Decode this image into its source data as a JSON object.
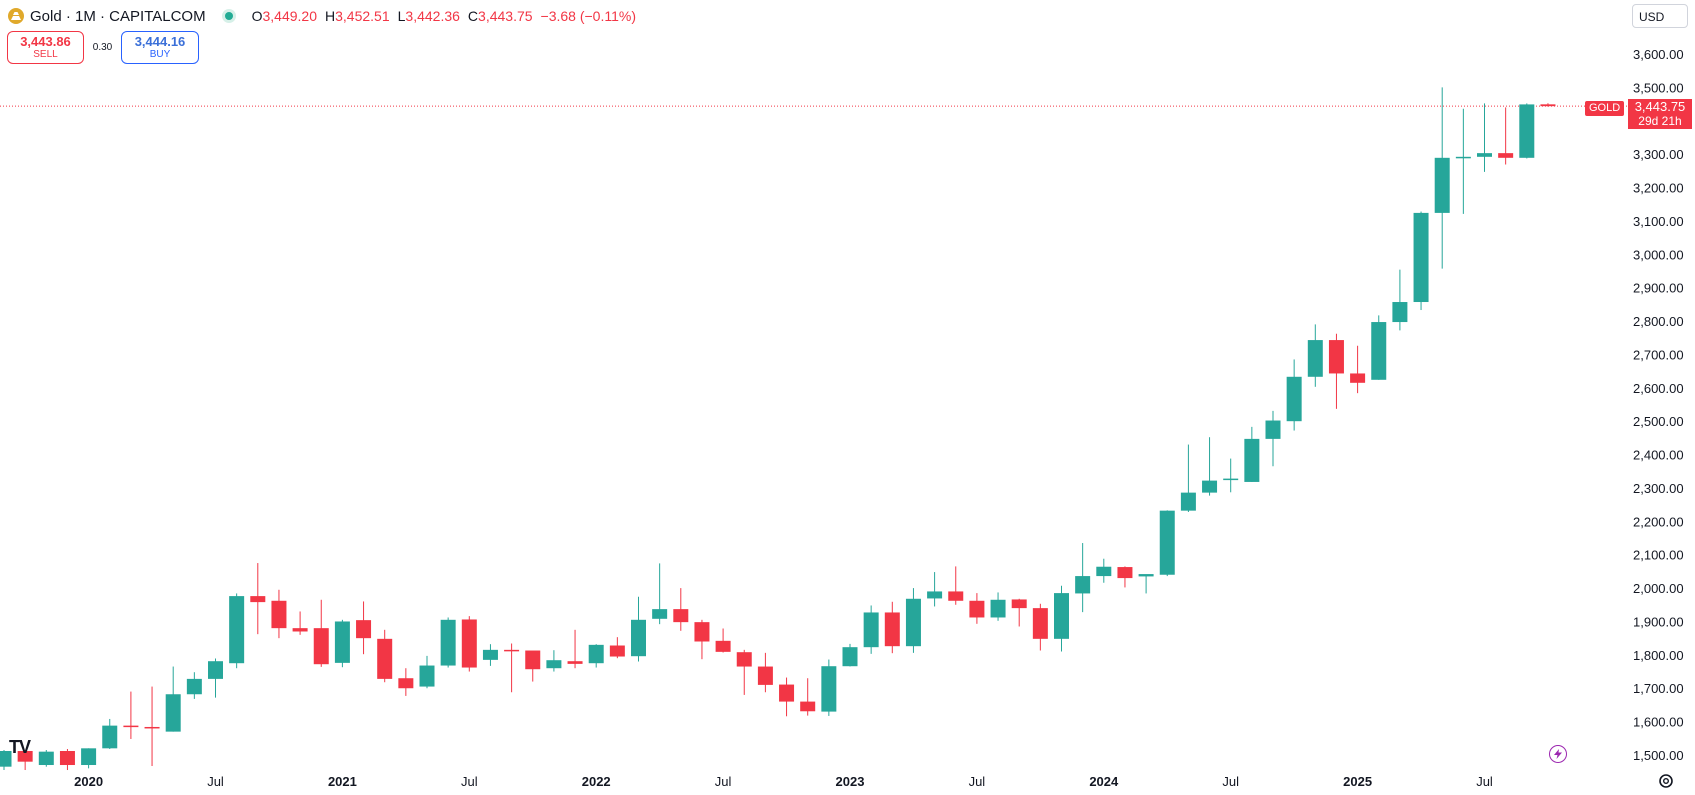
{
  "header": {
    "symbol": "Gold · 1M · CAPITALCOM",
    "ohlc": [
      {
        "k": "O",
        "v": "3,449.20"
      },
      {
        "k": "H",
        "v": "3,452.51"
      },
      {
        "k": "L",
        "v": "3,442.36"
      },
      {
        "k": "C",
        "v": "3,443.75"
      }
    ],
    "change": "−3.68 (−0.11%)",
    "icons": [
      "gold-logo-icon",
      "market-open-dot-icon"
    ]
  },
  "trade": {
    "sell_price": "3,443.86",
    "sell_label": "SELL",
    "spread": "0.30",
    "buy_price": "3,444.16",
    "buy_label": "BUY"
  },
  "currency": "USD",
  "price_badge": {
    "name": "GOLD",
    "price": "3,443.75",
    "countdown": "29d 21h"
  },
  "watermark": "TV",
  "colors": {
    "up": "#26a69a",
    "down": "#f23645",
    "axis_text": "#131722",
    "accent_buy": "#2962ff"
  },
  "chart_data": {
    "type": "candlestick",
    "timeframe": "1M",
    "ylim": [
      1450,
      3620
    ],
    "y_ticks": [
      "1,500.00",
      "1,600.00",
      "1,700.00",
      "1,800.00",
      "1,900.00",
      "2,000.00",
      "2,100.00",
      "2,200.00",
      "2,300.00",
      "2,400.00",
      "2,500.00",
      "2,600.00",
      "2,700.00",
      "2,800.00",
      "2,900.00",
      "3,000.00",
      "3,100.00",
      "3,200.00",
      "3,300.00",
      "3,500.00",
      "3,600.00"
    ],
    "x_ticks": [
      {
        "label": "2020",
        "i": 4,
        "bold": true
      },
      {
        "label": "Jul",
        "i": 10,
        "bold": false
      },
      {
        "label": "2021",
        "i": 16,
        "bold": true
      },
      {
        "label": "Jul",
        "i": 22,
        "bold": false
      },
      {
        "label": "2022",
        "i": 28,
        "bold": true
      },
      {
        "label": "Jul",
        "i": 34,
        "bold": false
      },
      {
        "label": "2023",
        "i": 40,
        "bold": true
      },
      {
        "label": "Jul",
        "i": 46,
        "bold": false
      },
      {
        "label": "2024",
        "i": 52,
        "bold": true
      },
      {
        "label": "Jul",
        "i": 58,
        "bold": false
      },
      {
        "label": "2025",
        "i": 64,
        "bold": true
      },
      {
        "label": "Jul",
        "i": 70,
        "bold": false
      }
    ],
    "last_price": 3443.75,
    "candles": [
      {
        "o": 1465,
        "h": 1515,
        "l": 1455,
        "c": 1512
      },
      {
        "o": 1512,
        "h": 1515,
        "l": 1455,
        "c": 1480
      },
      {
        "o": 1470,
        "h": 1515,
        "l": 1465,
        "c": 1510
      },
      {
        "o": 1512,
        "h": 1518,
        "l": 1455,
        "c": 1470
      },
      {
        "o": 1470,
        "h": 1520,
        "l": 1460,
        "c": 1520
      },
      {
        "o": 1520,
        "h": 1608,
        "l": 1518,
        "c": 1588
      },
      {
        "o": 1588,
        "h": 1690,
        "l": 1548,
        "c": 1584
      },
      {
        "o": 1584,
        "h": 1705,
        "l": 1467,
        "c": 1580
      },
      {
        "o": 1570,
        "h": 1765,
        "l": 1570,
        "c": 1682
      },
      {
        "o": 1682,
        "h": 1748,
        "l": 1668,
        "c": 1728
      },
      {
        "o": 1728,
        "h": 1789,
        "l": 1672,
        "c": 1781
      },
      {
        "o": 1775,
        "h": 1984,
        "l": 1760,
        "c": 1976
      },
      {
        "o": 1976,
        "h": 2075,
        "l": 1862,
        "c": 1958
      },
      {
        "o": 1962,
        "h": 1995,
        "l": 1850,
        "c": 1880
      },
      {
        "o": 1880,
        "h": 1930,
        "l": 1860,
        "c": 1870
      },
      {
        "o": 1880,
        "h": 1965,
        "l": 1764,
        "c": 1772
      },
      {
        "o": 1776,
        "h": 1905,
        "l": 1763,
        "c": 1900
      },
      {
        "o": 1904,
        "h": 1960,
        "l": 1802,
        "c": 1850
      },
      {
        "o": 1848,
        "h": 1875,
        "l": 1718,
        "c": 1728
      },
      {
        "o": 1730,
        "h": 1760,
        "l": 1677,
        "c": 1700
      },
      {
        "o": 1705,
        "h": 1797,
        "l": 1700,
        "c": 1768
      },
      {
        "o": 1768,
        "h": 1912,
        "l": 1762,
        "c": 1905
      },
      {
        "o": 1906,
        "h": 1916,
        "l": 1750,
        "c": 1762
      },
      {
        "o": 1785,
        "h": 1832,
        "l": 1767,
        "c": 1815
      },
      {
        "o": 1815,
        "h": 1834,
        "l": 1688,
        "c": 1813
      },
      {
        "o": 1813,
        "h": 1810,
        "l": 1720,
        "c": 1757
      },
      {
        "o": 1760,
        "h": 1814,
        "l": 1750,
        "c": 1784
      },
      {
        "o": 1781,
        "h": 1875,
        "l": 1760,
        "c": 1773
      },
      {
        "o": 1775,
        "h": 1832,
        "l": 1762,
        "c": 1830
      },
      {
        "o": 1828,
        "h": 1853,
        "l": 1790,
        "c": 1795
      },
      {
        "o": 1796,
        "h": 1974,
        "l": 1780,
        "c": 1905
      },
      {
        "o": 1908,
        "h": 2074,
        "l": 1892,
        "c": 1937
      },
      {
        "o": 1937,
        "h": 2000,
        "l": 1872,
        "c": 1898
      },
      {
        "o": 1898,
        "h": 1905,
        "l": 1787,
        "c": 1840
      },
      {
        "o": 1842,
        "h": 1879,
        "l": 1807,
        "c": 1809
      },
      {
        "o": 1808,
        "h": 1815,
        "l": 1680,
        "c": 1765
      },
      {
        "o": 1765,
        "h": 1806,
        "l": 1688,
        "c": 1710
      },
      {
        "o": 1711,
        "h": 1732,
        "l": 1616,
        "c": 1660
      },
      {
        "o": 1660,
        "h": 1730,
        "l": 1618,
        "c": 1631
      },
      {
        "o": 1630,
        "h": 1786,
        "l": 1617,
        "c": 1766
      },
      {
        "o": 1766,
        "h": 1833,
        "l": 1765,
        "c": 1823
      },
      {
        "o": 1823,
        "h": 1948,
        "l": 1803,
        "c": 1927
      },
      {
        "o": 1927,
        "h": 1959,
        "l": 1805,
        "c": 1826
      },
      {
        "o": 1826,
        "h": 2000,
        "l": 1806,
        "c": 1968
      },
      {
        "o": 1969,
        "h": 2048,
        "l": 1945,
        "c": 1990
      },
      {
        "o": 1990,
        "h": 2065,
        "l": 1950,
        "c": 1962
      },
      {
        "o": 1962,
        "h": 1985,
        "l": 1893,
        "c": 1912
      },
      {
        "o": 1912,
        "h": 1987,
        "l": 1902,
        "c": 1965
      },
      {
        "o": 1966,
        "h": 1968,
        "l": 1885,
        "c": 1940
      },
      {
        "o": 1940,
        "h": 1953,
        "l": 1813,
        "c": 1848
      },
      {
        "o": 1848,
        "h": 2007,
        "l": 1810,
        "c": 1985
      },
      {
        "o": 1984,
        "h": 2135,
        "l": 1928,
        "c": 2036
      },
      {
        "o": 2036,
        "h": 2088,
        "l": 2016,
        "c": 2064
      },
      {
        "o": 2063,
        "h": 2065,
        "l": 2002,
        "c": 2030
      },
      {
        "o": 2035,
        "h": 2040,
        "l": 1984,
        "c": 2042
      },
      {
        "o": 2040,
        "h": 2233,
        "l": 2036,
        "c": 2232
      },
      {
        "o": 2232,
        "h": 2430,
        "l": 2228,
        "c": 2286
      },
      {
        "o": 2286,
        "h": 2452,
        "l": 2277,
        "c": 2322
      },
      {
        "o": 2325,
        "h": 2388,
        "l": 2287,
        "c": 2328
      },
      {
        "o": 2318,
        "h": 2483,
        "l": 2318,
        "c": 2447
      },
      {
        "o": 2447,
        "h": 2531,
        "l": 2365,
        "c": 2502
      },
      {
        "o": 2500,
        "h": 2685,
        "l": 2472,
        "c": 2633
      },
      {
        "o": 2633,
        "h": 2790,
        "l": 2603,
        "c": 2743
      },
      {
        "o": 2743,
        "h": 2762,
        "l": 2537,
        "c": 2643
      },
      {
        "o": 2643,
        "h": 2726,
        "l": 2584,
        "c": 2615
      },
      {
        "o": 2624,
        "h": 2817,
        "l": 2624,
        "c": 2797
      },
      {
        "o": 2797,
        "h": 2954,
        "l": 2772,
        "c": 2857
      },
      {
        "o": 2857,
        "h": 3128,
        "l": 2833,
        "c": 3124
      },
      {
        "o": 3124,
        "h": 3500,
        "l": 2957,
        "c": 3289
      },
      {
        "o": 3289,
        "h": 3436,
        "l": 3121,
        "c": 3292
      },
      {
        "o": 3292,
        "h": 3452,
        "l": 3247,
        "c": 3303
      },
      {
        "o": 3303,
        "h": 3440,
        "l": 3269,
        "c": 3289
      },
      {
        "o": 3289,
        "h": 3452,
        "l": 3287,
        "c": 3449
      },
      {
        "o": 3449.2,
        "h": 3452.51,
        "l": 3442.36,
        "c": 3443.75
      }
    ]
  }
}
